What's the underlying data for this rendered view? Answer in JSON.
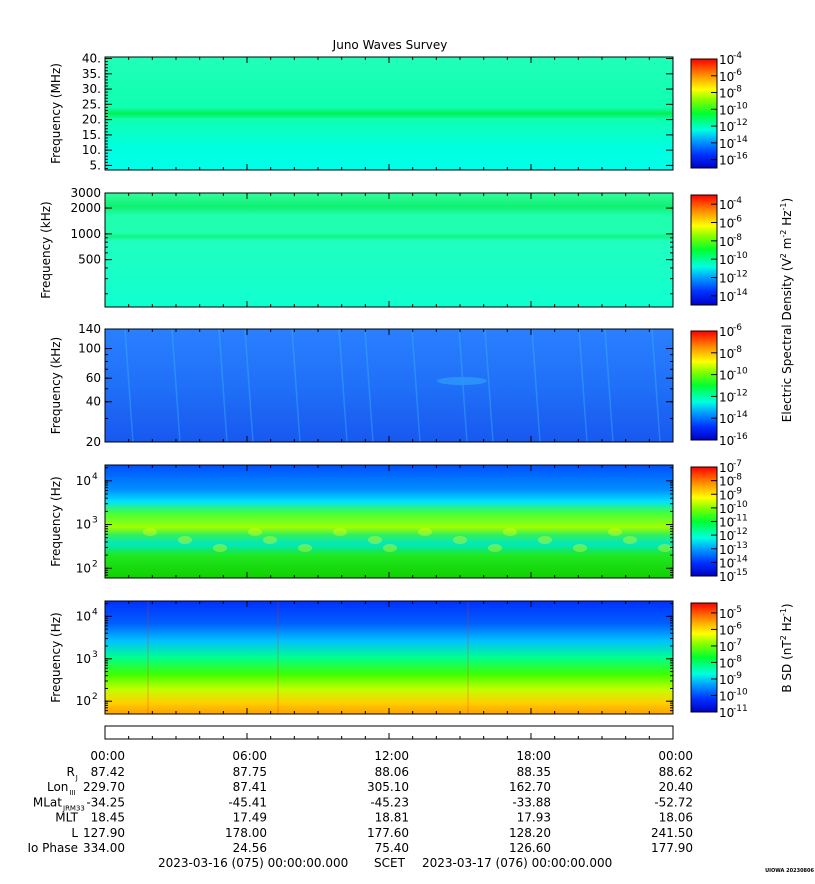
{
  "title": "Juno Waves Survey",
  "chart_data": [
    {
      "type": "heatmap",
      "ylabel": "Frequency (MHz)",
      "ylim": [
        3.5,
        40.5
      ],
      "yscale": "linear",
      "yticks": [
        {
          "v": 5,
          "label": "5."
        },
        {
          "v": 10,
          "label": "10."
        },
        {
          "v": 15,
          "label": "15."
        },
        {
          "v": 20,
          "label": "20."
        },
        {
          "v": 25,
          "label": "25."
        },
        {
          "v": 30,
          "label": "30."
        },
        {
          "v": 35,
          "label": "35."
        },
        {
          "v": 40,
          "label": "40."
        }
      ],
      "colorbar": {
        "exps": [
          "-4",
          "-6",
          "-8",
          "-10",
          "-12",
          "-14",
          "-16"
        ],
        "range": [
          -17,
          -4
        ]
      }
    },
    {
      "type": "heatmap",
      "ylabel": "Frequency (kHz)",
      "ylim": [
        140,
        3000
      ],
      "yscale": "log",
      "yticks": [
        {
          "v": 500,
          "label": "500"
        },
        {
          "v": 1000,
          "label": "1000"
        },
        {
          "v": 2000,
          "label": "2000"
        },
        {
          "v": 3000,
          "label": "3000"
        }
      ],
      "colorbar": {
        "exps": [
          "-4",
          "-6",
          "-8",
          "-10",
          "-12",
          "-14"
        ],
        "range": [
          -15,
          -3
        ]
      }
    },
    {
      "type": "heatmap",
      "ylabel": "Frequency (kHz)",
      "ylim": [
        20,
        140
      ],
      "yscale": "log",
      "yticks": [
        {
          "v": 20,
          "label": "20"
        },
        {
          "v": 40,
          "label": "40"
        },
        {
          "v": 60,
          "label": "60"
        },
        {
          "v": 100,
          "label": "100"
        },
        {
          "v": 140,
          "label": "140"
        }
      ],
      "colorbar": {
        "exps": [
          "-6",
          "-8",
          "-10",
          "-12",
          "-14",
          "-16"
        ],
        "range": [
          -16,
          -6
        ]
      }
    },
    {
      "type": "heatmap",
      "ylabel": "Frequency (Hz)",
      "ylim": [
        60,
        23000
      ],
      "yscale": "log",
      "yticks": [
        {
          "v": 100,
          "label": "10",
          "sup": "2"
        },
        {
          "v": 1000,
          "label": "10",
          "sup": "3"
        },
        {
          "v": 10000,
          "label": "10",
          "sup": "4"
        }
      ],
      "colorbar": {
        "exps": [
          "-7",
          "-8",
          "-9",
          "-10",
          "-11",
          "-12",
          "-13",
          "-14",
          "-15"
        ],
        "range": [
          -15,
          -7
        ]
      }
    },
    {
      "type": "heatmap",
      "ylabel": "Frequency (Hz)",
      "ylim": [
        50,
        23000
      ],
      "yscale": "log",
      "yticks": [
        {
          "v": 100,
          "label": "10",
          "sup": "2"
        },
        {
          "v": 1000,
          "label": "10",
          "sup": "3"
        },
        {
          "v": 10000,
          "label": "10",
          "sup": "4"
        }
      ],
      "colorbar": {
        "exps": [
          "-5",
          "-6",
          "-7",
          "-8",
          "-9",
          "-10",
          "-11"
        ],
        "range": [
          -11,
          -4.4
        ]
      }
    }
  ],
  "colorbar_titles": {
    "electric": "Electric Spectral Density (V",
    "magnetic": "B SD (nT"
  },
  "ephemeris": {
    "times": [
      "00:00",
      "06:00",
      "12:00",
      "18:00",
      "00:00"
    ],
    "rows": [
      {
        "label": "R",
        "sub": "J",
        "values": [
          "87.42",
          "87.75",
          "88.06",
          "88.35",
          "88.62"
        ]
      },
      {
        "label": "Lon",
        "sub": "III",
        "values": [
          "229.70",
          "87.41",
          "305.10",
          "162.70",
          "20.40"
        ]
      },
      {
        "label": "MLat",
        "sub": "JRM33",
        "values": [
          "-34.25",
          "-45.41",
          "-45.23",
          "-33.88",
          "-52.72"
        ]
      },
      {
        "label": "MLT",
        "sub": "",
        "values": [
          "18.45",
          "17.49",
          "18.81",
          "17.93",
          "18.06"
        ]
      },
      {
        "label": "L",
        "sub": "",
        "values": [
          "127.90",
          "178.00",
          "177.60",
          "128.20",
          "241.50"
        ]
      },
      {
        "label": "Io Phase",
        "sub": "",
        "values": [
          "334.00",
          "24.56",
          "75.40",
          "126.60",
          "177.90"
        ]
      }
    ]
  },
  "footer": {
    "start": "2023-03-16 (075) 00:00:00.000",
    "scet": "SCET",
    "end": "2023-03-17 (076) 00:00:00.000",
    "stamp": "UIOWA 20230806"
  }
}
